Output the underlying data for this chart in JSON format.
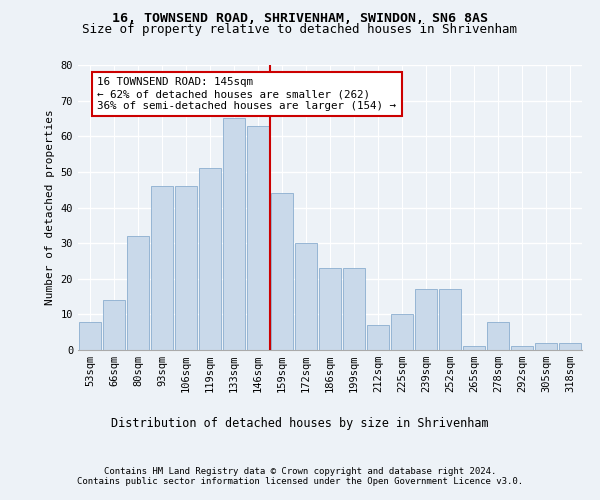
{
  "title1": "16, TOWNSEND ROAD, SHRIVENHAM, SWINDON, SN6 8AS",
  "title2": "Size of property relative to detached houses in Shrivenham",
  "xlabel": "Distribution of detached houses by size in Shrivenham",
  "ylabel": "Number of detached properties",
  "categories": [
    "53sqm",
    "66sqm",
    "80sqm",
    "93sqm",
    "106sqm",
    "119sqm",
    "133sqm",
    "146sqm",
    "159sqm",
    "172sqm",
    "186sqm",
    "199sqm",
    "212sqm",
    "225sqm",
    "239sqm",
    "252sqm",
    "265sqm",
    "278sqm",
    "292sqm",
    "305sqm",
    "318sqm"
  ],
  "values": [
    8,
    14,
    32,
    46,
    46,
    51,
    65,
    63,
    44,
    30,
    23,
    23,
    7,
    10,
    17,
    17,
    1,
    8,
    1,
    2,
    2
  ],
  "bar_color": "#c9d9ea",
  "bar_edge_color": "#8baecf",
  "annotation_text": "16 TOWNSEND ROAD: 145sqm\n← 62% of detached houses are smaller (262)\n36% of semi-detached houses are larger (154) →",
  "vline_color": "#cc0000",
  "vline_pos": 7.5,
  "ylim": [
    0,
    80
  ],
  "yticks": [
    0,
    10,
    20,
    30,
    40,
    50,
    60,
    70,
    80
  ],
  "footer1": "Contains HM Land Registry data © Crown copyright and database right 2024.",
  "footer2": "Contains public sector information licensed under the Open Government Licence v3.0.",
  "bg_color": "#edf2f7",
  "grid_color": "white",
  "title1_fontsize": 9.5,
  "title2_fontsize": 9.0,
  "ylabel_fontsize": 8.0,
  "xlabel_fontsize": 8.5,
  "tick_fontsize": 7.5,
  "annot_fontsize": 7.8,
  "footer_fontsize": 6.5
}
